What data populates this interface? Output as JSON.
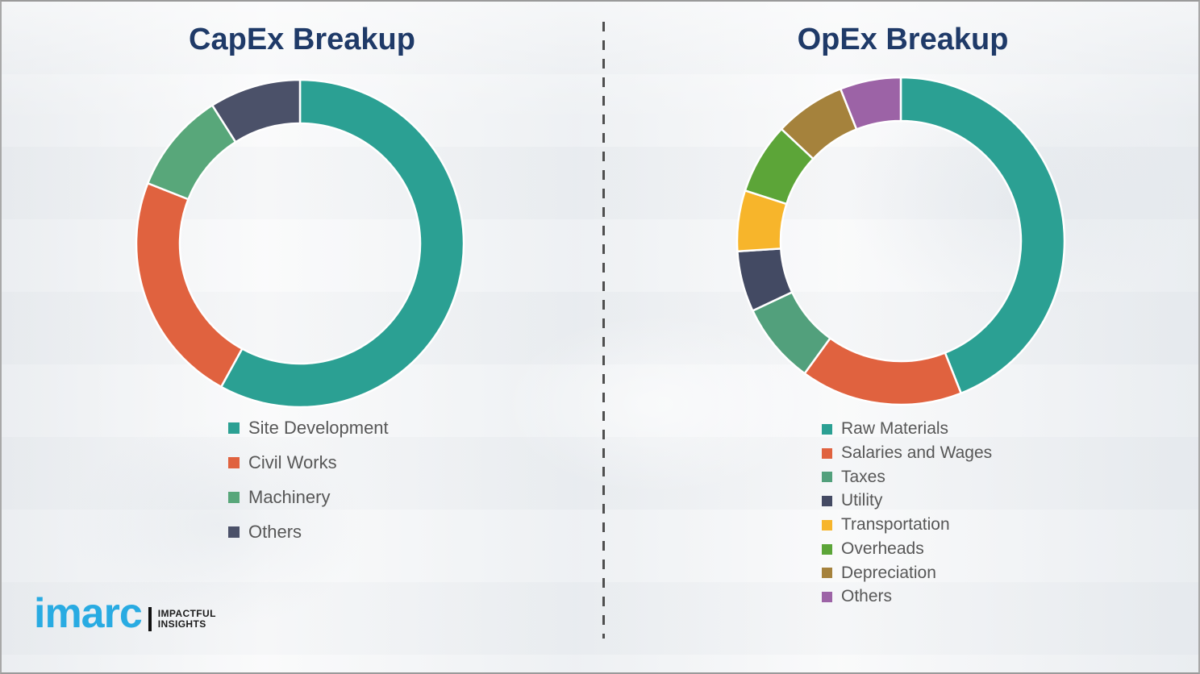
{
  "chart_data": [
    {
      "id": "capex",
      "type": "pie",
      "subtype": "donut",
      "title": "CapEx Breakup",
      "labels": [
        "Site Development",
        "Civil Works",
        "Machinery",
        "Others"
      ],
      "values": [
        58,
        23,
        10,
        9
      ],
      "colors": [
        "#2ba093",
        "#e0623f",
        "#58a77a",
        "#4b5169"
      ],
      "values_note": "percent shares estimated from arc angles; no data labels shown in chart",
      "start_angle_deg": 0,
      "direction": "clockwise",
      "legend_position": "below-left",
      "grid": false
    },
    {
      "id": "opex",
      "type": "pie",
      "subtype": "donut",
      "title": "OpEx Breakup",
      "labels": [
        "Raw Materials",
        "Salaries and Wages",
        "Taxes",
        "Utility",
        "Transportation",
        "Overheads",
        "Depreciation",
        "Others"
      ],
      "values": [
        44,
        16,
        8,
        6,
        6,
        7,
        7,
        6
      ],
      "colors": [
        "#2ba093",
        "#e0623f",
        "#52a07c",
        "#434a63",
        "#f7b52b",
        "#5ca538",
        "#a5823c",
        "#9c63a6"
      ],
      "values_note": "percent shares estimated from arc angles; no data labels shown in chart",
      "start_angle_deg": 0,
      "direction": "clockwise",
      "legend_position": "below-left",
      "grid": false
    }
  ],
  "branding": {
    "logo_text": "imarc",
    "tagline_line1": "IMPACTFUL",
    "tagline_line2": "INSIGHTS",
    "logo_color": "#29abe2"
  },
  "palette": {
    "title_text": "#1f3a68",
    "legend_text": "#575757",
    "divider": "#4f4f4f",
    "background": "#f2f3f5",
    "segment_gap": "#ffffff"
  }
}
